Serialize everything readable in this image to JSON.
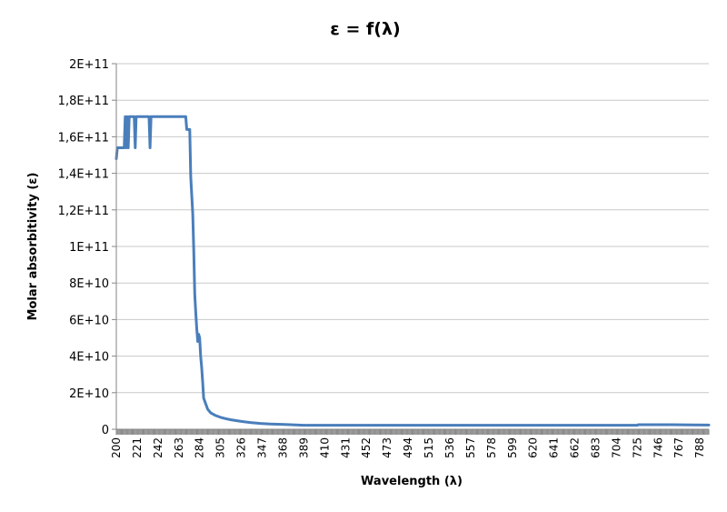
{
  "chart_data": {
    "type": "line",
    "title": "ε = f(λ)",
    "xlabel": "Wavelength (λ)",
    "ylabel": "Molar absorbitivity (ε)",
    "xlim": [
      200,
      797
    ],
    "ylim": [
      0,
      200000000000
    ],
    "grid": "horizontal",
    "legend": "none",
    "yticks": [
      0,
      20000000000,
      40000000000,
      60000000000,
      80000000000,
      100000000000,
      120000000000,
      140000000000,
      160000000000,
      180000000000,
      200000000000
    ],
    "ytick_labels": [
      "0",
      "2E+10",
      "4E+10",
      "6E+10",
      "8E+10",
      "1E+11",
      "1,2E+11",
      "1,4E+11",
      "1,6E+11",
      "1,8E+11",
      "2E+11"
    ],
    "xticks": [
      "200",
      "221",
      "242",
      "263",
      "284",
      "305",
      "326",
      "347",
      "368",
      "389",
      "410",
      "431",
      "452",
      "473",
      "494",
      "515",
      "536",
      "557",
      "578",
      "599",
      "620",
      "641",
      "662",
      "683",
      "704",
      "725",
      "746",
      "767",
      "788"
    ],
    "series": [
      {
        "color": "#4a7ebb",
        "x": [
          200,
          201,
          202,
          205,
          208,
          209,
          210,
          211,
          212,
          213,
          214,
          216,
          218,
          219,
          220,
          221,
          233,
          234,
          235,
          236,
          270,
          271,
          272,
          274,
          275,
          276,
          277,
          278,
          279,
          280,
          281,
          282,
          283,
          284,
          285,
          286,
          287,
          288,
          290,
          292,
          295,
          300,
          305,
          310,
          315,
          320,
          326,
          335,
          345,
          355,
          370,
          389,
          400,
          450,
          500,
          600,
          700,
          725,
          726,
          760,
          797
        ],
        "y": [
          148000000000,
          154000000000,
          154000000000,
          154000000000,
          154000000000,
          171000000000,
          154000000000,
          171000000000,
          154000000000,
          171000000000,
          171000000000,
          171000000000,
          171000000000,
          154000000000,
          171000000000,
          171000000000,
          171000000000,
          154000000000,
          171000000000,
          171000000000,
          171000000000,
          164000000000,
          164000000000,
          164000000000,
          138000000000,
          128000000000,
          118000000000,
          98000000000,
          74000000000,
          64000000000,
          55000000000,
          48000000000,
          52000000000,
          50000000000,
          40000000000,
          34000000000,
          26000000000,
          17000000000,
          14000000000,
          11000000000,
          9000000000,
          7500000000,
          6500000000,
          5800000000,
          5200000000,
          4800000000,
          4300000000,
          3700000000,
          3200000000,
          2900000000,
          2600000000,
          2200000000,
          2200000000,
          2200000000,
          2200000000,
          2200000000,
          2200000000,
          2200000000,
          2500000000,
          2500000000,
          2300000000
        ]
      }
    ]
  }
}
